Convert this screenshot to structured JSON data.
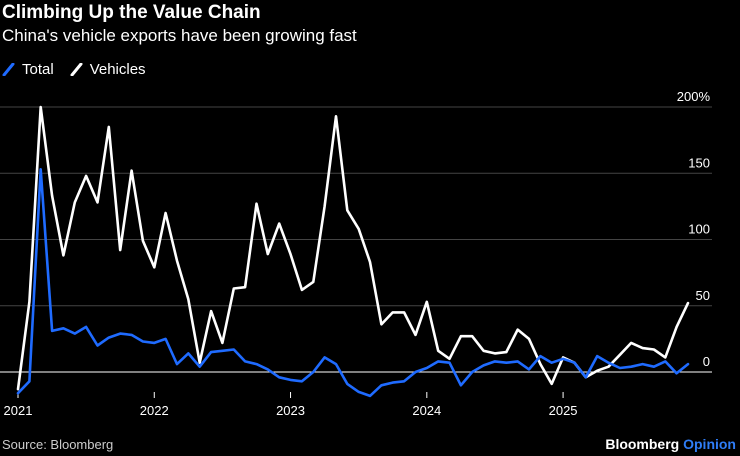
{
  "header": {
    "title": "Climbing Up the Value Chain",
    "subtitle": "China's vehicle exports have been growing fast"
  },
  "legend": [
    {
      "label": "Total",
      "color": "#1f6bff"
    },
    {
      "label": "Vehicles",
      "color": "#ffffff"
    }
  ],
  "footer": {
    "source": "Source: Bloomberg",
    "brand_main": "Bloomberg",
    "brand_accent": "Opinion"
  },
  "chart_data": {
    "type": "line",
    "title": "Climbing Up the Value Chain",
    "subtitle": "China's vehicle exports have been growing fast",
    "xlabel": "",
    "ylabel": "",
    "y_unit": "%",
    "ylim": [
      -17,
      200
    ],
    "y_ticks": [
      0,
      50,
      100,
      150,
      200
    ],
    "y_tick_labels": [
      "0",
      "50",
      "100",
      "150",
      "200%"
    ],
    "x_ticks": [
      {
        "label": "2021",
        "index": 0
      },
      {
        "label": "2022",
        "index": 12
      },
      {
        "label": "2023",
        "index": 24
      },
      {
        "label": "2024",
        "index": 36
      },
      {
        "label": "2025",
        "index": 48
      }
    ],
    "grid": true,
    "legend_position": "top-left",
    "series": [
      {
        "name": "Total",
        "color": "#1f6bff",
        "values": [
          -16,
          -7,
          153,
          31,
          33,
          29,
          34,
          20,
          26,
          29,
          28,
          23,
          22,
          25,
          6,
          14,
          4,
          15,
          16,
          17,
          8,
          6,
          2,
          -4,
          -6,
          -7,
          0,
          11,
          6,
          -9,
          -15,
          -18,
          -10,
          -8,
          -7,
          0,
          3,
          8,
          7,
          -10,
          0,
          5,
          8,
          7,
          8,
          2,
          12,
          7,
          10,
          7,
          -4,
          12,
          7,
          3,
          4,
          6,
          4,
          8,
          -1,
          6
        ]
      },
      {
        "name": "Vehicles",
        "color": "#ffffff",
        "values": [
          -13,
          53,
          200,
          133,
          88,
          128,
          148,
          128,
          185,
          92,
          152,
          99,
          79,
          120,
          84,
          55,
          7,
          46,
          22,
          63,
          64,
          127,
          89,
          112,
          89,
          62,
          68,
          125,
          193,
          122,
          108,
          83,
          36,
          45,
          45,
          28,
          53,
          16,
          10,
          27,
          27,
          16,
          14,
          15,
          32,
          25,
          6,
          -9,
          11,
          7,
          -4,
          1,
          4,
          13,
          22,
          18,
          17,
          11,
          34,
          52
        ]
      }
    ]
  }
}
